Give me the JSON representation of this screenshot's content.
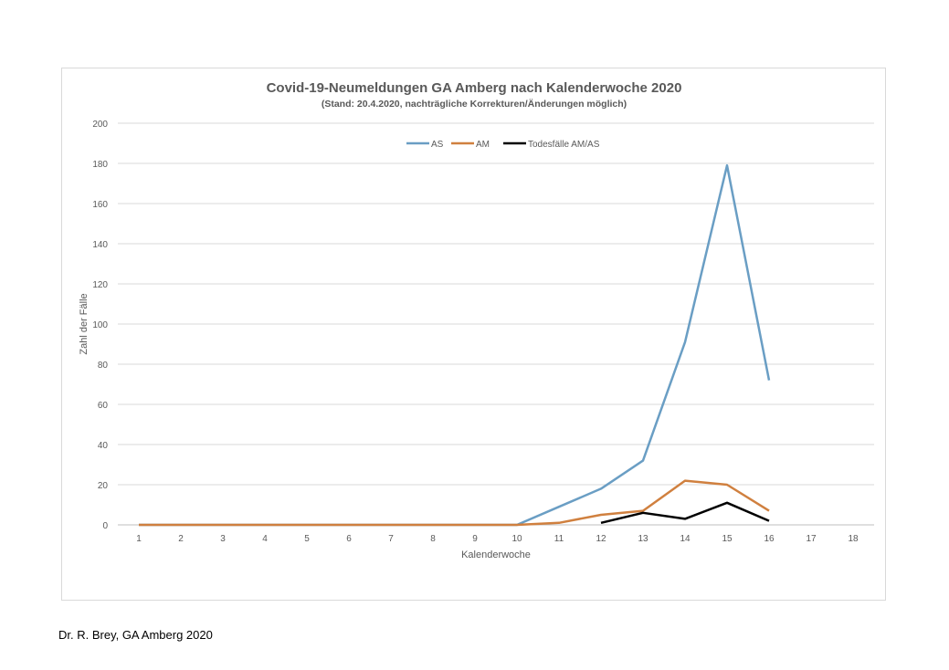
{
  "footer": {
    "credit": "Dr. R. Brey, GA Amberg 2020"
  },
  "chart_data": {
    "type": "line",
    "title": "Covid-19-Neumeldungen GA Amberg nach Kalenderwoche 2020",
    "subtitle": "(Stand: 20.4.2020,  nachträgliche Korrekturen/Änderungen möglich)",
    "xlabel": "Kalenderwoche",
    "ylabel": "Zahl der Fälle",
    "categories": [
      "1",
      "2",
      "3",
      "4",
      "5",
      "6",
      "7",
      "8",
      "9",
      "10",
      "11",
      "12",
      "13",
      "14",
      "15",
      "16",
      "17",
      "18"
    ],
    "ylim": [
      0,
      200
    ],
    "yticks": [
      0,
      20,
      40,
      60,
      80,
      100,
      120,
      140,
      160,
      180,
      200
    ],
    "grid": true,
    "legend_position": "top-center",
    "series": [
      {
        "name": "AS",
        "color": "#6a9ec4",
        "values": [
          0,
          0,
          0,
          0,
          0,
          0,
          0,
          0,
          0,
          0,
          9,
          18,
          32,
          91,
          179,
          72,
          null,
          null
        ]
      },
      {
        "name": "AM",
        "color": "#d0803f",
        "values": [
          0,
          0,
          0,
          0,
          0,
          0,
          0,
          0,
          0,
          0,
          1,
          5,
          7,
          22,
          20,
          7,
          null,
          null
        ]
      },
      {
        "name": "Todesfälle AM/AS",
        "color": "#000000",
        "values": [
          null,
          null,
          null,
          null,
          null,
          null,
          null,
          null,
          null,
          null,
          null,
          1,
          6,
          3,
          11,
          2,
          null,
          null
        ]
      }
    ]
  }
}
